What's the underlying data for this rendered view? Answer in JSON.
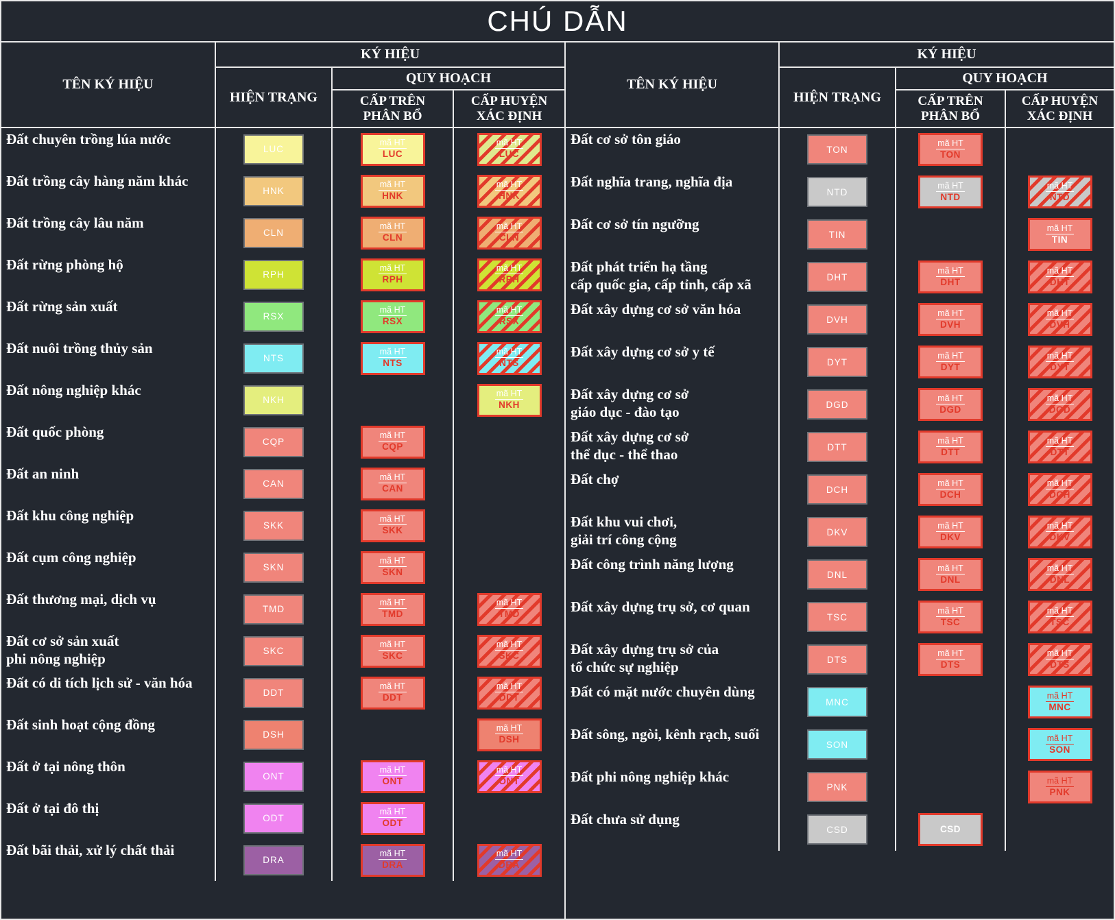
{
  "title": "CHÚ DẪN",
  "maht_label": "mã HT",
  "header": {
    "name_col": "TÊN KÝ HIỆU",
    "symbol_col": "KÝ HIỆU",
    "current": "HIỆN TRẠNG",
    "planning": "QUY HOẠCH",
    "upper_level": [
      "CẤP TRÊN",
      "PHÂN BỔ"
    ],
    "district_level": [
      "CẤP HUYỆN",
      "XÁC ĐỊNH"
    ]
  },
  "colors": {
    "background": "#232830",
    "grid_line": "#e9e9e9",
    "hatch_red": "#e23a2b",
    "current_box_border": "#6e7278",
    "planning_box_border": "#e23a2b"
  },
  "left": {
    "rows": [
      {
        "label": [
          "Đất chuyên trồng lúa nước"
        ],
        "code": "LUC",
        "fill": "#f8f49a",
        "ct": "maht",
        "ch": "hatch",
        "ch_fill": "#dfe98f"
      },
      {
        "label": [
          "Đất trồng cây hàng năm khác"
        ],
        "code": "HNK",
        "fill": "#f2c87e",
        "ct": "maht",
        "ch": "hatch"
      },
      {
        "label": [
          "Đất trồng cây lâu năm"
        ],
        "code": "CLN",
        "fill": "#efae73",
        "ct": "maht",
        "ch": "hatch"
      },
      {
        "label": [
          "Đất rừng phòng hộ"
        ],
        "code": "RPH",
        "fill": "#cfe335",
        "ct": "maht",
        "ch": "hatch"
      },
      {
        "label": [
          "Đất rừng sản xuất"
        ],
        "code": "RSX",
        "fill": "#90e87e",
        "ct": "maht",
        "ch": "hatch"
      },
      {
        "label": [
          "Đất nuôi trồng thủy sản"
        ],
        "code": "NTS",
        "fill": "#7fecf2",
        "ct": "maht",
        "ch": "hatch"
      },
      {
        "label": [
          "Đất nông nghiệp khác"
        ],
        "code": "NKH",
        "fill": "#e4ee7e",
        "ct": null,
        "ch": "solid"
      },
      {
        "label": [
          "Đất quốc phòng"
        ],
        "code": "CQP",
        "fill": "#f0857b",
        "ct": "maht",
        "ch": null
      },
      {
        "label": [
          "Đất an ninh"
        ],
        "code": "CAN",
        "fill": "#f0857b",
        "ct": "maht",
        "ch": null
      },
      {
        "label": [
          "Đất khu công nghiệp"
        ],
        "code": "SKK",
        "fill": "#f0857b",
        "ct": "maht",
        "ch": null
      },
      {
        "label": [
          "Đất cụm công nghiệp"
        ],
        "code": "SKN",
        "fill": "#f0857b",
        "ct": "maht",
        "ch": null
      },
      {
        "label": [
          "Đất thương mại, dịch vụ"
        ],
        "code": "TMD",
        "fill": "#f0857b",
        "ct": "maht",
        "ch": "hatch"
      },
      {
        "label": [
          "Đất cơ sở sản xuất",
          "phi nông nghiệp"
        ],
        "code": "SKC",
        "fill": "#f0857b",
        "ct": "maht",
        "ch": "hatch"
      },
      {
        "label": [
          "Đất có di tích lịch sử - văn hóa"
        ],
        "code": "DDT",
        "fill": "#f0857b",
        "ct": "maht",
        "ch": "hatch"
      },
      {
        "label": [
          "Đất sinh hoạt cộng đồng"
        ],
        "code": "DSH",
        "fill": "#ee8270",
        "ct": null,
        "ch": "solid"
      },
      {
        "label": [
          "Đất ở tại nông thôn"
        ],
        "code": "ONT",
        "fill": "#f083f0",
        "ct": "maht",
        "ch": "hatch"
      },
      {
        "label": [
          "Đất ở tại đô thị"
        ],
        "code": "ODT",
        "fill": "#f083f0",
        "ct": "maht",
        "ch": null
      },
      {
        "label": [
          "Đất bãi thải, xử lý chất thải"
        ],
        "code": "DRA",
        "fill": "#9c60a4",
        "ct": "maht",
        "ch": "hatch"
      }
    ]
  },
  "right": {
    "rows": [
      {
        "label": [
          "Đất cơ sở tôn giáo"
        ],
        "code": "TON",
        "fill": "#f0857b",
        "ct": "maht",
        "ch": null
      },
      {
        "label": [
          "Đất nghĩa trang, nghĩa địa"
        ],
        "code": "NTD",
        "fill": "#c9c9c9",
        "ct": "maht",
        "ch": "hatch"
      },
      {
        "label": [
          "Đất cơ sở tín ngưỡng"
        ],
        "code": "TIN",
        "fill": "#f0857b",
        "ct": null,
        "ch": "solid",
        "ch_text": "white"
      },
      {
        "label": [
          "Đất phát triển hạ tầng",
          "cấp quốc gia, cấp tỉnh, cấp xã"
        ],
        "code": "DHT",
        "fill": "#f0857b",
        "ct": "maht",
        "ch": "hatch"
      },
      {
        "label": [
          "Đất xây dựng cơ sở văn hóa"
        ],
        "code": "DVH",
        "fill": "#f0857b",
        "ct": "maht",
        "ch": "hatch"
      },
      {
        "label": [
          "Đất xây dựng cơ sở y tế"
        ],
        "code": "DYT",
        "fill": "#f0857b",
        "ct": "maht",
        "ch": "hatch"
      },
      {
        "label": [
          "Đất xây dựng cơ sở",
          "giáo dục - đào tạo"
        ],
        "code": "DGD",
        "fill": "#f0857b",
        "ct": "maht",
        "ch": "hatch"
      },
      {
        "label": [
          "Đất xây dựng cơ sở",
          "thể dục - thể thao"
        ],
        "code": "DTT",
        "fill": "#f0857b",
        "ct": "maht",
        "ch": "hatch"
      },
      {
        "label": [
          "Đất chợ"
        ],
        "code": "DCH",
        "fill": "#f0857b",
        "ct": "maht",
        "ch": "hatch"
      },
      {
        "label": [
          "Đất khu vui chơi,",
          "giải trí công cộng"
        ],
        "code": "DKV",
        "fill": "#f0857b",
        "ct": "maht",
        "ch": "hatch"
      },
      {
        "label": [
          "Đất công trình năng lượng"
        ],
        "code": "DNL",
        "fill": "#f0857b",
        "ct": "maht",
        "ch": "hatch"
      },
      {
        "label": [
          "Đất xây dựng trụ sở, cơ quan"
        ],
        "code": "TSC",
        "fill": "#f0857b",
        "ct": "maht",
        "ch": "hatch"
      },
      {
        "label": [
          "Đất xây dựng trụ sở của",
          "tổ chức sự nghiệp"
        ],
        "code": "DTS",
        "fill": "#f0857b",
        "ct": "maht",
        "ch": "hatch"
      },
      {
        "label": [
          "Đất có mặt nước chuyên dùng"
        ],
        "code": "MNC",
        "fill": "#7fecf2",
        "ct": null,
        "ch": "solid",
        "ch_maht": "red"
      },
      {
        "label": [
          "Đất sông, ngòi, kênh rạch, suối"
        ],
        "code": "SON",
        "fill": "#7fecf2",
        "ct": null,
        "ch": "solid",
        "ch_maht": "red"
      },
      {
        "label": [
          "Đất phi nông nghiệp khác"
        ],
        "code": "PNK",
        "fill": "#f0857b",
        "ct": null,
        "ch": "solid",
        "ch_maht": "red"
      },
      {
        "label": [
          "Đất chưa sử dụng"
        ],
        "code": "CSD",
        "fill": "#c9c9c9",
        "ct": "code",
        "ch": null
      }
    ]
  }
}
